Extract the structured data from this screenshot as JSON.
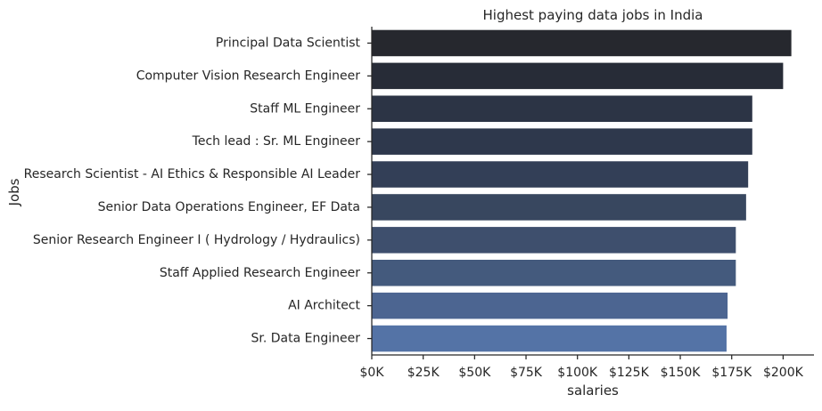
{
  "chart_data": {
    "type": "bar",
    "orientation": "horizontal",
    "title": "Highest paying  data jobs in India",
    "xlabel": "salaries",
    "ylabel": "Jobs",
    "xlim": [
      0,
      215000
    ],
    "x_ticks": [
      0,
      25000,
      50000,
      75000,
      100000,
      125000,
      150000,
      175000,
      200000
    ],
    "x_tick_labels": [
      "$0K",
      "$25K",
      "$50K",
      "$75K",
      "$100K",
      "$125K",
      "$150K",
      "$175K",
      "$200K"
    ],
    "categories": [
      "Principal Data Scientist",
      "Computer Vision Research Engineer",
      "Staff ML Engineer",
      "Tech lead : Sr. ML Engineer",
      "Research Scientist - AI Ethics & Responsible AI Leader",
      "Senior Data Operations Engineer, EF Data",
      "Senior Research Engineer  I ( Hydrology / Hydraulics)",
      "Staff Applied Research Engineer",
      "AI Architect",
      "Sr. Data Engineer"
    ],
    "values": [
      204000,
      200000,
      185000,
      185000,
      183000,
      182000,
      177000,
      177000,
      173000,
      172500
    ],
    "colors": [
      "#26282e",
      "#272c37",
      "#2c3445",
      "#2e384c",
      "#333f57",
      "#38475f",
      "#3e4f6d",
      "#445a7d",
      "#4c6591",
      "#5473a6"
    ],
    "grid": false,
    "legend": "none"
  }
}
